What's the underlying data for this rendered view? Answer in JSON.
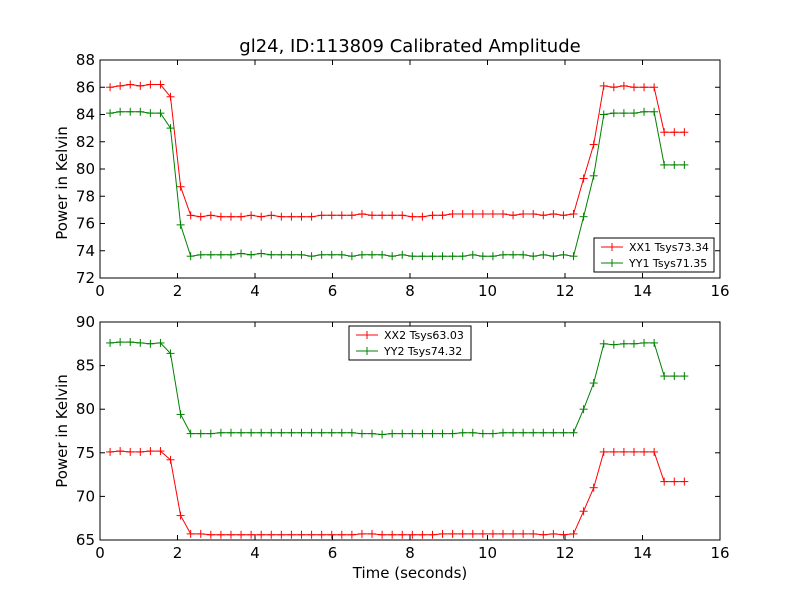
{
  "chart_data": [
    {
      "type": "line",
      "title": "gl24, ID:113809 Calibrated Amplitude",
      "xlabel": "",
      "ylabel": "Power in Kelvin",
      "xlim": [
        0,
        16
      ],
      "ylim": [
        72,
        88
      ],
      "xticks": [
        0,
        2,
        4,
        6,
        8,
        10,
        12,
        14,
        16
      ],
      "yticks": [
        72,
        74,
        76,
        78,
        80,
        82,
        84,
        86,
        88
      ],
      "grid": false,
      "legend_position": "lower-right",
      "x": [
        0.26,
        0.52,
        0.78,
        1.04,
        1.3,
        1.56,
        1.82,
        2.08,
        2.34,
        2.6,
        2.86,
        3.12,
        3.38,
        3.64,
        3.9,
        4.16,
        4.42,
        4.68,
        4.94,
        5.2,
        5.46,
        5.72,
        5.98,
        6.24,
        6.5,
        6.76,
        7.02,
        7.28,
        7.54,
        7.8,
        8.06,
        8.32,
        8.58,
        8.84,
        9.1,
        9.36,
        9.62,
        9.88,
        10.14,
        10.4,
        10.66,
        10.92,
        11.18,
        11.44,
        11.7,
        11.96,
        12.22,
        12.48,
        12.74,
        13.0,
        13.26,
        13.52,
        13.78,
        14.04,
        14.3,
        14.56,
        14.82,
        15.08
      ],
      "series": [
        {
          "name": "XX1 Tsys73.34",
          "color": "#ff0000",
          "values": [
            86.0,
            86.1,
            86.2,
            86.1,
            86.2,
            86.2,
            85.3,
            78.7,
            76.6,
            76.5,
            76.6,
            76.5,
            76.5,
            76.5,
            76.6,
            76.5,
            76.6,
            76.5,
            76.5,
            76.5,
            76.5,
            76.6,
            76.6,
            76.6,
            76.6,
            76.7,
            76.6,
            76.6,
            76.6,
            76.6,
            76.5,
            76.5,
            76.6,
            76.6,
            76.7,
            76.7,
            76.7,
            76.7,
            76.7,
            76.7,
            76.6,
            76.7,
            76.7,
            76.6,
            76.7,
            76.6,
            76.7,
            79.3,
            81.8,
            86.1,
            86.0,
            86.1,
            86.0,
            86.0,
            86.0,
            82.7,
            82.7,
            82.7
          ]
        },
        {
          "name": "YY1 Tsys71.35",
          "color": "#008000",
          "values": [
            84.1,
            84.2,
            84.2,
            84.2,
            84.1,
            84.1,
            83.0,
            75.9,
            73.6,
            73.7,
            73.7,
            73.7,
            73.7,
            73.8,
            73.7,
            73.8,
            73.7,
            73.7,
            73.7,
            73.7,
            73.6,
            73.7,
            73.7,
            73.7,
            73.6,
            73.7,
            73.7,
            73.7,
            73.6,
            73.7,
            73.6,
            73.6,
            73.6,
            73.6,
            73.6,
            73.6,
            73.7,
            73.6,
            73.6,
            73.7,
            73.7,
            73.7,
            73.6,
            73.7,
            73.6,
            73.7,
            73.6,
            76.5,
            79.5,
            84.0,
            84.1,
            84.1,
            84.1,
            84.2,
            84.2,
            80.3,
            80.3,
            80.3
          ]
        }
      ]
    },
    {
      "type": "line",
      "title": "",
      "xlabel": "Time (seconds)",
      "ylabel": "Power in Kelvin",
      "xlim": [
        0,
        16
      ],
      "ylim": [
        65,
        90
      ],
      "xticks": [
        0,
        2,
        4,
        6,
        8,
        10,
        12,
        14,
        16
      ],
      "yticks": [
        65,
        70,
        75,
        80,
        85,
        90
      ],
      "grid": false,
      "legend_position": "upper-center",
      "x": [
        0.26,
        0.52,
        0.78,
        1.04,
        1.3,
        1.56,
        1.82,
        2.08,
        2.34,
        2.6,
        2.86,
        3.12,
        3.38,
        3.64,
        3.9,
        4.16,
        4.42,
        4.68,
        4.94,
        5.2,
        5.46,
        5.72,
        5.98,
        6.24,
        6.5,
        6.76,
        7.02,
        7.28,
        7.54,
        7.8,
        8.06,
        8.32,
        8.58,
        8.84,
        9.1,
        9.36,
        9.62,
        9.88,
        10.14,
        10.4,
        10.66,
        10.92,
        11.18,
        11.44,
        11.7,
        11.96,
        12.22,
        12.48,
        12.74,
        13.0,
        13.26,
        13.52,
        13.78,
        14.04,
        14.3,
        14.56,
        14.82,
        15.08
      ],
      "series": [
        {
          "name": "XX2 Tsys63.03",
          "color": "#ff0000",
          "values": [
            75.1,
            75.2,
            75.1,
            75.1,
            75.2,
            75.2,
            74.2,
            67.8,
            65.7,
            65.7,
            65.6,
            65.6,
            65.6,
            65.6,
            65.6,
            65.6,
            65.6,
            65.6,
            65.6,
            65.6,
            65.6,
            65.6,
            65.6,
            65.6,
            65.6,
            65.7,
            65.7,
            65.6,
            65.6,
            65.6,
            65.6,
            65.6,
            65.6,
            65.7,
            65.7,
            65.7,
            65.7,
            65.7,
            65.7,
            65.7,
            65.7,
            65.7,
            65.7,
            65.6,
            65.7,
            65.6,
            65.7,
            68.3,
            71.0,
            75.1,
            75.1,
            75.1,
            75.1,
            75.1,
            75.1,
            71.7,
            71.7,
            71.7
          ]
        },
        {
          "name": "YY2 Tsys74.32",
          "color": "#008000",
          "values": [
            87.6,
            87.7,
            87.7,
            87.6,
            87.5,
            87.6,
            86.4,
            79.4,
            77.2,
            77.2,
            77.2,
            77.3,
            77.3,
            77.3,
            77.3,
            77.3,
            77.3,
            77.3,
            77.3,
            77.3,
            77.3,
            77.3,
            77.3,
            77.3,
            77.3,
            77.2,
            77.2,
            77.1,
            77.2,
            77.2,
            77.2,
            77.2,
            77.2,
            77.2,
            77.2,
            77.3,
            77.3,
            77.2,
            77.2,
            77.3,
            77.3,
            77.3,
            77.3,
            77.3,
            77.3,
            77.3,
            77.3,
            80.0,
            83.0,
            87.5,
            87.4,
            87.5,
            87.5,
            87.6,
            87.6,
            83.8,
            83.8,
            83.8
          ]
        }
      ]
    }
  ]
}
